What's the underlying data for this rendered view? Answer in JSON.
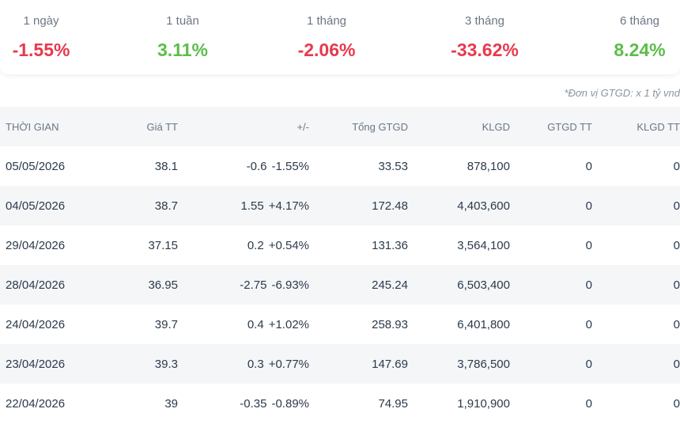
{
  "performance": [
    {
      "label": "1 ngày",
      "value": "-1.55%",
      "tone": "neg"
    },
    {
      "label": "1 tuần",
      "value": "3.11%",
      "tone": "pos"
    },
    {
      "label": "1 tháng",
      "value": "-2.06%",
      "tone": "neg"
    },
    {
      "label": "3 tháng",
      "value": "-33.62%",
      "tone": "neg"
    },
    {
      "label": "6 tháng",
      "value": "8.24%",
      "tone": "pos"
    }
  ],
  "unit_note": "*Đơn vị GTGD: x 1 tỷ vnd",
  "table": {
    "headers": {
      "date": "THỜI GIAN",
      "price": "Giá TT",
      "change": "+/-",
      "total_value": "Tổng GTGD",
      "volume": "KLGD",
      "put_value": "GTGD TT",
      "put_volume": "KLGD TT"
    },
    "rows": [
      {
        "date": "05/05/2026",
        "price": "38.1",
        "change_abs": "-0.6",
        "change_pct": "-1.55%",
        "tone": "neg",
        "total_value": "33.53",
        "volume": "878,100",
        "put_value": "0",
        "put_volume": "0"
      },
      {
        "date": "04/05/2026",
        "price": "38.7",
        "change_abs": "1.55",
        "change_pct": "+4.17%",
        "tone": "pos",
        "total_value": "172.48",
        "volume": "4,403,600",
        "put_value": "0",
        "put_volume": "0"
      },
      {
        "date": "29/04/2026",
        "price": "37.15",
        "change_abs": "0.2",
        "change_pct": "+0.54%",
        "tone": "pos",
        "total_value": "131.36",
        "volume": "3,564,100",
        "put_value": "0",
        "put_volume": "0"
      },
      {
        "date": "28/04/2026",
        "price": "36.95",
        "change_abs": "-2.75",
        "change_pct": "-6.93%",
        "tone": "floor",
        "total_value": "245.24",
        "volume": "6,503,400",
        "put_value": "0",
        "put_volume": "0"
      },
      {
        "date": "24/04/2026",
        "price": "39.7",
        "change_abs": "0.4",
        "change_pct": "+1.02%",
        "tone": "pos",
        "total_value": "258.93",
        "volume": "6,401,800",
        "put_value": "0",
        "put_volume": "0"
      },
      {
        "date": "23/04/2026",
        "price": "39.3",
        "change_abs": "0.3",
        "change_pct": "+0.77%",
        "tone": "pos",
        "total_value": "147.69",
        "volume": "3,786,500",
        "put_value": "0",
        "put_volume": "0"
      },
      {
        "date": "22/04/2026",
        "price": "39",
        "change_abs": "-0.35",
        "change_pct": "-0.89%",
        "tone": "neg",
        "total_value": "74.95",
        "volume": "1,910,900",
        "put_value": "0",
        "put_volume": "0"
      }
    ]
  },
  "colors": {
    "negative": "#e8394d",
    "positive": "#5cbd4a",
    "floor": "#22c7c7"
  }
}
